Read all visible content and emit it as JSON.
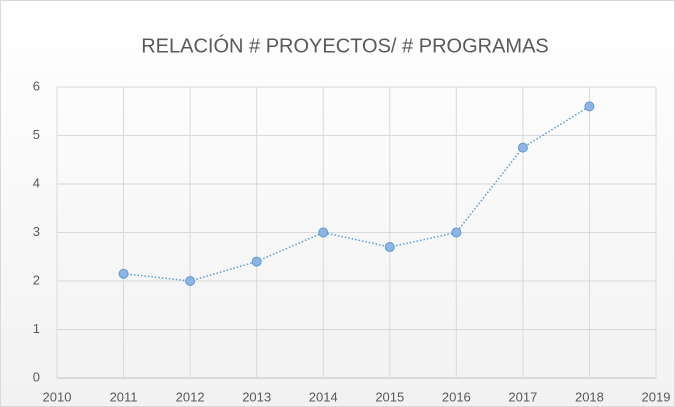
{
  "chart_data": {
    "type": "line",
    "title": "RELACIÓN # PROYECTOS/ # PROGRAMAS",
    "x": [
      2011,
      2012,
      2013,
      2014,
      2015,
      2016,
      2017,
      2018
    ],
    "series": [
      {
        "name": "Relación",
        "color": "#5b9bd5",
        "values": [
          2.15,
          2.0,
          2.4,
          3.0,
          2.7,
          3.0,
          4.75,
          5.6
        ]
      }
    ],
    "xlim": [
      2010,
      2019
    ],
    "xticks": [
      2010,
      2011,
      2012,
      2013,
      2014,
      2015,
      2016,
      2017,
      2018,
      2019
    ],
    "ylim": [
      0,
      6
    ],
    "yticks": [
      0,
      1,
      2,
      3,
      4,
      5,
      6
    ],
    "grid": true,
    "legend": false
  }
}
